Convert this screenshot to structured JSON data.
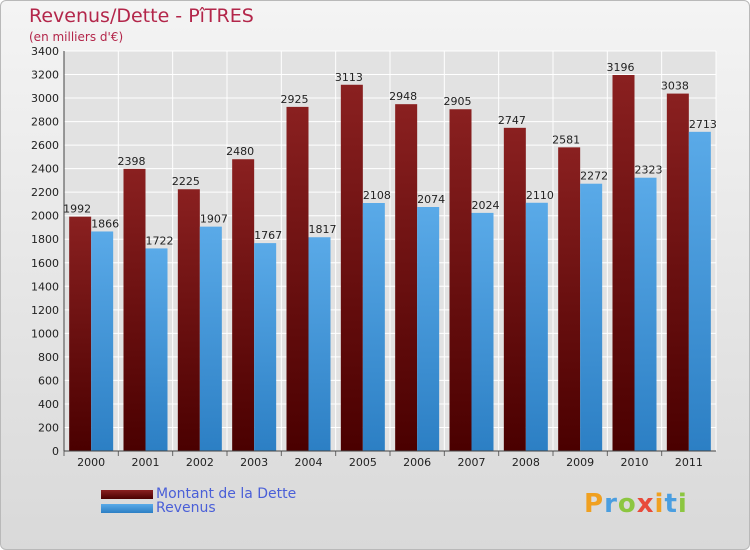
{
  "header": {
    "title": "Revenus/Dette - PîTRES",
    "subtitle": "(en milliers d'€)"
  },
  "colors": {
    "debt": "#8a2020",
    "debt_dark": "#4a0000",
    "revenue": "#5aaae8",
    "revenue_dark": "#2c7fc4",
    "axis_text": "#222222",
    "grid": "#ffffff"
  },
  "chart_data": {
    "type": "bar",
    "title": "Revenus/Dette - PîTRES",
    "ylabel": "(en milliers d'€)",
    "xlabel": "",
    "categories": [
      "2000",
      "2001",
      "2002",
      "2003",
      "2004",
      "2005",
      "2006",
      "2007",
      "2008",
      "2009",
      "2010",
      "2011"
    ],
    "series": [
      {
        "name": "Montant de la Dette",
        "values": [
          1992,
          2398,
          2225,
          2480,
          2925,
          3113,
          2948,
          2905,
          2747,
          2581,
          3196,
          3038
        ]
      },
      {
        "name": "Revenus",
        "values": [
          1866,
          1722,
          1907,
          1767,
          1817,
          2108,
          2074,
          2024,
          2110,
          2272,
          2323,
          2713
        ]
      }
    ],
    "ylim": [
      0,
      3400
    ],
    "ytick_step": 200,
    "grid": true,
    "legend": "bottom-left"
  },
  "legend": {
    "items": [
      {
        "label": "Montant de la Dette"
      },
      {
        "label": "Revenus"
      }
    ]
  },
  "brand": {
    "letters": [
      "P",
      "r",
      "o",
      "x",
      "i",
      "t",
      "i"
    ],
    "colors": [
      "#f0a020",
      "#4a9ee0",
      "#8cc640",
      "#e84a3a",
      "#f0a020",
      "#4a9ee0",
      "#8cc640"
    ]
  }
}
